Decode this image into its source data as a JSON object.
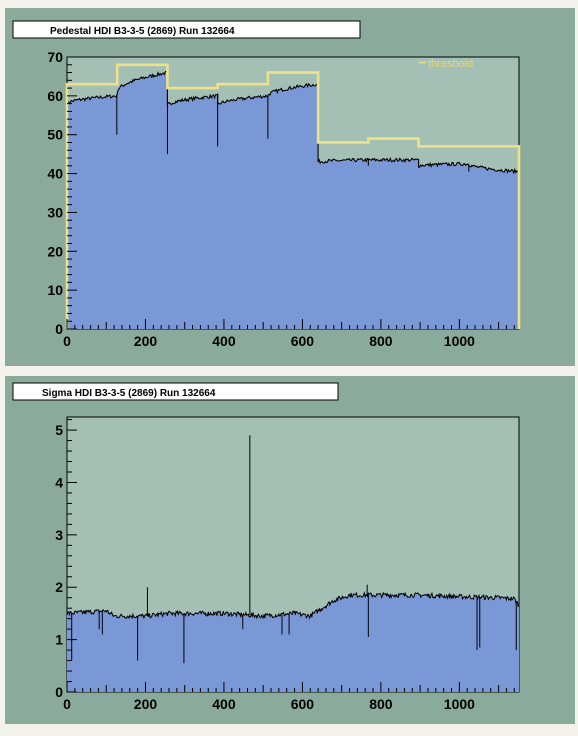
{
  "colors": {
    "pad_background": "#8aab9c",
    "frame_background": "#a4bfb3",
    "histogram_fill": "#7b98d6",
    "histogram_line": "#000000",
    "threshold": "#ede28a",
    "outer_background": "#f4f2ec"
  },
  "chart_data": [
    {
      "type": "area",
      "title": "Pedestal HDI B3-3-5 (2869) Run 132664",
      "xlabel": "",
      "ylabel": "",
      "xlim": [
        0,
        1152
      ],
      "ylim": [
        0,
        70
      ],
      "x_ticks": [
        0,
        200,
        400,
        600,
        800,
        1000
      ],
      "y_ticks": [
        0,
        10,
        20,
        30,
        40,
        50,
        60,
        70
      ],
      "grid": false,
      "legend": {
        "position": "top-right",
        "entries": [
          "threshold"
        ]
      },
      "series": [
        {
          "kind": "filled-histogram",
          "segments": [
            {
              "x0": 0,
              "x1": 128,
              "y0": 58,
              "y1": 60
            },
            {
              "x0": 128,
              "x1": 256,
              "y0": 61,
              "y1": 66
            },
            {
              "x0": 256,
              "x1": 384,
              "y0": 57.5,
              "y1": 60
            },
            {
              "x0": 384,
              "x1": 512,
              "y0": 57.5,
              "y1": 60
            },
            {
              "x0": 512,
              "x1": 640,
              "y0": 60,
              "y1": 63
            },
            {
              "x0": 640,
              "x1": 768,
              "y0": 43,
              "y1": 43.5
            },
            {
              "x0": 768,
              "x1": 896,
              "y0": 43.5,
              "y1": 43.5
            },
            {
              "x0": 896,
              "x1": 1024,
              "y0": 42,
              "y1": 42.5
            },
            {
              "x0": 1024,
              "x1": 1152,
              "y0": 42.5,
              "y1": 40.5
            }
          ],
          "dips": [
            {
              "x": 127,
              "y": 50
            },
            {
              "x": 256,
              "y": 45
            },
            {
              "x": 384,
              "y": 47
            },
            {
              "x": 512,
              "y": 49
            },
            {
              "x": 768,
              "y": 42
            },
            {
              "x": 1024,
              "y": 40.5
            }
          ]
        },
        {
          "name": "threshold",
          "kind": "step",
          "x_edges": [
            0,
            128,
            256,
            384,
            512,
            640,
            768,
            896,
            1024,
            1152
          ],
          "values": [
            63,
            68,
            62,
            63,
            66,
            48,
            49,
            47,
            47
          ]
        }
      ]
    },
    {
      "type": "area",
      "title": "Sigma HDI B3-3-5 (2869) Run 132664",
      "xlabel": "",
      "ylabel": "",
      "xlim": [
        0,
        1152
      ],
      "ylim": [
        0,
        5.25
      ],
      "x_ticks": [
        0,
        200,
        400,
        600,
        800,
        1000
      ],
      "y_ticks": [
        0,
        1,
        2,
        3,
        4,
        5
      ],
      "grid": false,
      "series": [
        {
          "kind": "filled-histogram",
          "profile": [
            [
              0,
              1.5
            ],
            [
              100,
              1.55
            ],
            [
              120,
              1.45
            ],
            [
              200,
              1.45
            ],
            [
              260,
              1.5
            ],
            [
              400,
              1.5
            ],
            [
              500,
              1.45
            ],
            [
              580,
              1.5
            ],
            [
              620,
              1.45
            ],
            [
              650,
              1.6
            ],
            [
              680,
              1.75
            ],
            [
              720,
              1.85
            ],
            [
              900,
              1.85
            ],
            [
              1000,
              1.82
            ],
            [
              1100,
              1.8
            ],
            [
              1140,
              1.78
            ],
            [
              1152,
              1.65
            ]
          ],
          "dips": [
            {
              "x": 12,
              "y": 0.6
            },
            {
              "x": 82,
              "y": 1.2
            },
            {
              "x": 90,
              "y": 1.1
            },
            {
              "x": 180,
              "y": 0.6
            },
            {
              "x": 298,
              "y": 0.55
            },
            {
              "x": 448,
              "y": 1.2
            },
            {
              "x": 548,
              "y": 1.1
            },
            {
              "x": 566,
              "y": 1.1
            },
            {
              "x": 768,
              "y": 1.05
            },
            {
              "x": 1045,
              "y": 0.8
            },
            {
              "x": 1052,
              "y": 0.85
            },
            {
              "x": 1145,
              "y": 0.8
            }
          ],
          "spikes": [
            {
              "x": 205,
              "y": 2.0
            },
            {
              "x": 466,
              "y": 4.9
            },
            {
              "x": 765,
              "y": 2.05
            }
          ]
        }
      ]
    }
  ]
}
